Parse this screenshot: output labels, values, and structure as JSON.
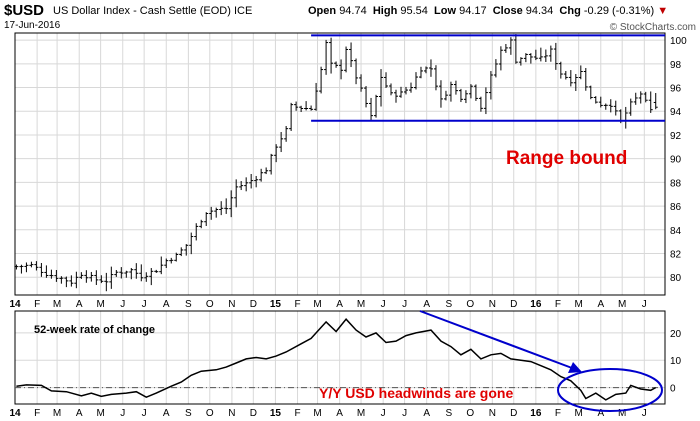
{
  "header": {
    "symbol": "$USD",
    "name": "US Dollar Index - Cash Settle (EOD)",
    "exchange": "ICE",
    "date": "17-Jun-2016",
    "open_label": "Open",
    "open": "94.74",
    "high_label": "High",
    "high": "95.54",
    "low_label": "Low",
    "low": "94.17",
    "close_label": "Close",
    "close": "94.34",
    "chg_label": "Chg",
    "chg": "-0.29 (-0.31%)",
    "down_marker": "▼",
    "brand": "© StockCharts.com"
  },
  "colors": {
    "price": "#000000",
    "range_line": "#0000cc",
    "annotation_red": "#e00000",
    "arrow_blue": "#0000cc",
    "grid": "#d8d8d8"
  },
  "chart_data": [
    {
      "type": "ohlc",
      "title": "US Dollar Index - Cash Settle (EOD)",
      "x_type": "date",
      "x_range": [
        "2014-01-01",
        "2016-06-30"
      ],
      "ylim": [
        78.5,
        100.6
      ],
      "y_ticks": [
        80,
        82,
        84,
        86,
        88,
        90,
        92,
        94,
        96,
        98,
        100
      ],
      "grid": true,
      "x_tick_labels": [
        {
          "date": "2014-01-01",
          "label": "14"
        },
        {
          "date": "2014-02-01",
          "label": "F"
        },
        {
          "date": "2014-03-01",
          "label": "M"
        },
        {
          "date": "2014-04-01",
          "label": "A"
        },
        {
          "date": "2014-05-01",
          "label": "M"
        },
        {
          "date": "2014-06-01",
          "label": "J"
        },
        {
          "date": "2014-07-01",
          "label": "J"
        },
        {
          "date": "2014-08-01",
          "label": "A"
        },
        {
          "date": "2014-09-01",
          "label": "S"
        },
        {
          "date": "2014-10-01",
          "label": "O"
        },
        {
          "date": "2014-11-01",
          "label": "N"
        },
        {
          "date": "2014-12-01",
          "label": "D"
        },
        {
          "date": "2015-01-01",
          "label": "15"
        },
        {
          "date": "2015-02-01",
          "label": "F"
        },
        {
          "date": "2015-03-01",
          "label": "M"
        },
        {
          "date": "2015-04-01",
          "label": "A"
        },
        {
          "date": "2015-05-01",
          "label": "M"
        },
        {
          "date": "2015-06-01",
          "label": "J"
        },
        {
          "date": "2015-07-01",
          "label": "J"
        },
        {
          "date": "2015-08-01",
          "label": "A"
        },
        {
          "date": "2015-09-01",
          "label": "S"
        },
        {
          "date": "2015-10-01",
          "label": "O"
        },
        {
          "date": "2015-11-01",
          "label": "N"
        },
        {
          "date": "2015-12-01",
          "label": "D"
        },
        {
          "date": "2016-01-01",
          "label": "16"
        },
        {
          "date": "2016-02-01",
          "label": "F"
        },
        {
          "date": "2016-03-01",
          "label": "M"
        },
        {
          "date": "2016-04-01",
          "label": "A"
        },
        {
          "date": "2016-05-01",
          "label": "M"
        },
        {
          "date": "2016-06-01",
          "label": "J"
        }
      ],
      "weekly_close_anchors": [
        [
          "2014-01-03",
          80.9
        ],
        [
          "2014-01-24",
          81.0
        ],
        [
          "2014-02-14",
          80.3
        ],
        [
          "2014-03-07",
          79.9
        ],
        [
          "2014-03-21",
          79.6
        ],
        [
          "2014-04-04",
          80.3
        ],
        [
          "2014-04-25",
          79.8
        ],
        [
          "2014-05-09",
          79.7
        ],
        [
          "2014-05-23",
          80.4
        ],
        [
          "2014-06-13",
          80.6
        ],
        [
          "2014-06-27",
          80.1
        ],
        [
          "2014-07-18",
          80.6
        ],
        [
          "2014-08-01",
          81.4
        ],
        [
          "2014-08-15",
          81.8
        ],
        [
          "2014-08-29",
          82.7
        ],
        [
          "2014-09-12",
          84.2
        ],
        [
          "2014-09-26",
          85.5
        ],
        [
          "2014-10-10",
          85.7
        ],
        [
          "2014-10-24",
          85.8
        ],
        [
          "2014-11-07",
          87.6
        ],
        [
          "2014-11-21",
          87.9
        ],
        [
          "2014-12-05",
          88.4
        ],
        [
          "2014-12-19",
          89.1
        ],
        [
          "2015-01-02",
          91.1
        ],
        [
          "2015-01-16",
          92.4
        ],
        [
          "2015-01-23",
          94.4
        ],
        [
          "2015-02-06",
          94.3
        ],
        [
          "2015-02-20",
          94.2
        ],
        [
          "2015-03-06",
          97.5
        ],
        [
          "2015-03-13",
          99.7
        ],
        [
          "2015-03-20",
          97.9
        ],
        [
          "2015-04-03",
          97.6
        ],
        [
          "2015-04-10",
          99.3
        ],
        [
          "2015-04-24",
          96.9
        ],
        [
          "2015-05-15",
          93.5
        ],
        [
          "2015-05-29",
          96.9
        ],
        [
          "2015-06-12",
          95.4
        ],
        [
          "2015-06-26",
          95.5
        ],
        [
          "2015-07-10",
          96.1
        ],
        [
          "2015-07-24",
          97.6
        ],
        [
          "2015-08-07",
          97.6
        ],
        [
          "2015-08-21",
          94.9
        ],
        [
          "2015-09-04",
          96.2
        ],
        [
          "2015-09-18",
          95.2
        ],
        [
          "2015-10-02",
          96.1
        ],
        [
          "2015-10-16",
          94.4
        ],
        [
          "2015-10-30",
          96.9
        ],
        [
          "2015-11-13",
          99.1
        ],
        [
          "2015-11-27",
          99.9
        ],
        [
          "2015-12-04",
          98.3
        ],
        [
          "2015-12-18",
          98.7
        ],
        [
          "2016-01-08",
          98.4
        ],
        [
          "2016-01-22",
          99.1
        ],
        [
          "2016-02-05",
          97.2
        ],
        [
          "2016-02-19",
          96.6
        ],
        [
          "2016-03-04",
          97.3
        ],
        [
          "2016-03-18",
          95.1
        ],
        [
          "2016-04-01",
          94.6
        ],
        [
          "2016-04-15",
          94.6
        ],
        [
          "2016-04-29",
          93.1
        ],
        [
          "2016-05-13",
          94.6
        ],
        [
          "2016-05-27",
          95.5
        ],
        [
          "2016-06-10",
          94.0
        ],
        [
          "2016-06-17",
          94.34
        ]
      ],
      "latest_bar": {
        "date": "2016-06-17",
        "open": 94.74,
        "high": 95.54,
        "low": 94.17,
        "close": 94.34
      },
      "range_lines": {
        "upper": 100.4,
        "lower": 93.2,
        "start": "2015-02-20",
        "end": "2016-06-30"
      },
      "annotation": "Range bound"
    },
    {
      "type": "line",
      "title": "52-week rate of change",
      "x_type": "date",
      "x_range": [
        "2014-01-01",
        "2016-06-30"
      ],
      "ylim": [
        -6,
        28
      ],
      "y_ticks": [
        0,
        10,
        20
      ],
      "grid": true,
      "zero_line": true,
      "x_tick_labels_same_as_main": true,
      "points": [
        [
          "2014-01-03",
          0.5
        ],
        [
          "2014-01-17",
          1.0
        ],
        [
          "2014-02-07",
          0.8
        ],
        [
          "2014-02-21",
          -1.2
        ],
        [
          "2014-03-14",
          -1.5
        ],
        [
          "2014-04-04",
          -3.0
        ],
        [
          "2014-04-18",
          -2.0
        ],
        [
          "2014-05-02",
          -3.2
        ],
        [
          "2014-05-16",
          -2.5
        ],
        [
          "2014-06-06",
          -2.0
        ],
        [
          "2014-06-20",
          -1.5
        ],
        [
          "2014-07-04",
          -3.5
        ],
        [
          "2014-07-18",
          -2.0
        ],
        [
          "2014-08-08",
          0.5
        ],
        [
          "2014-08-22",
          2.0
        ],
        [
          "2014-09-05",
          4.5
        ],
        [
          "2014-09-19",
          6.0
        ],
        [
          "2014-10-10",
          6.5
        ],
        [
          "2014-10-24",
          7.5
        ],
        [
          "2014-11-07",
          9.0
        ],
        [
          "2014-11-21",
          10.5
        ],
        [
          "2014-12-05",
          11.0
        ],
        [
          "2014-12-19",
          10.5
        ],
        [
          "2015-01-02",
          11.5
        ],
        [
          "2015-01-16",
          13.0
        ],
        [
          "2015-02-06",
          16.0
        ],
        [
          "2015-02-20",
          18.0
        ],
        [
          "2015-03-06",
          22.0
        ],
        [
          "2015-03-13",
          24.0
        ],
        [
          "2015-03-27",
          20.5
        ],
        [
          "2015-04-10",
          25.0
        ],
        [
          "2015-04-24",
          21.0
        ],
        [
          "2015-05-08",
          18.5
        ],
        [
          "2015-05-22",
          20.0
        ],
        [
          "2015-06-05",
          16.5
        ],
        [
          "2015-06-19",
          17.0
        ],
        [
          "2015-07-03",
          19.0
        ],
        [
          "2015-07-17",
          20.0
        ],
        [
          "2015-08-07",
          21.0
        ],
        [
          "2015-08-21",
          17.0
        ],
        [
          "2015-09-04",
          15.0
        ],
        [
          "2015-09-18",
          12.0
        ],
        [
          "2015-10-02",
          14.0
        ],
        [
          "2015-10-16",
          10.5
        ],
        [
          "2015-10-30",
          12.0
        ],
        [
          "2015-11-13",
          12.5
        ],
        [
          "2015-11-27",
          10.5
        ],
        [
          "2015-12-11",
          10.0
        ],
        [
          "2015-12-25",
          9.5
        ],
        [
          "2016-01-08",
          8.0
        ],
        [
          "2016-01-22",
          6.5
        ],
        [
          "2016-02-05",
          4.0
        ],
        [
          "2016-02-19",
          2.5
        ],
        [
          "2016-03-04",
          -1.0
        ],
        [
          "2016-03-11",
          -4.0
        ],
        [
          "2016-03-25",
          -2.0
        ],
        [
          "2016-04-08",
          -4.5
        ],
        [
          "2016-04-22",
          -2.5
        ],
        [
          "2016-05-06",
          -2.0
        ],
        [
          "2016-05-13",
          0.8
        ],
        [
          "2016-05-27",
          -0.5
        ],
        [
          "2016-06-10",
          -1.0
        ],
        [
          "2016-06-17",
          0.0
        ]
      ],
      "annotation": "Y/Y USD headwinds are gone"
    }
  ]
}
